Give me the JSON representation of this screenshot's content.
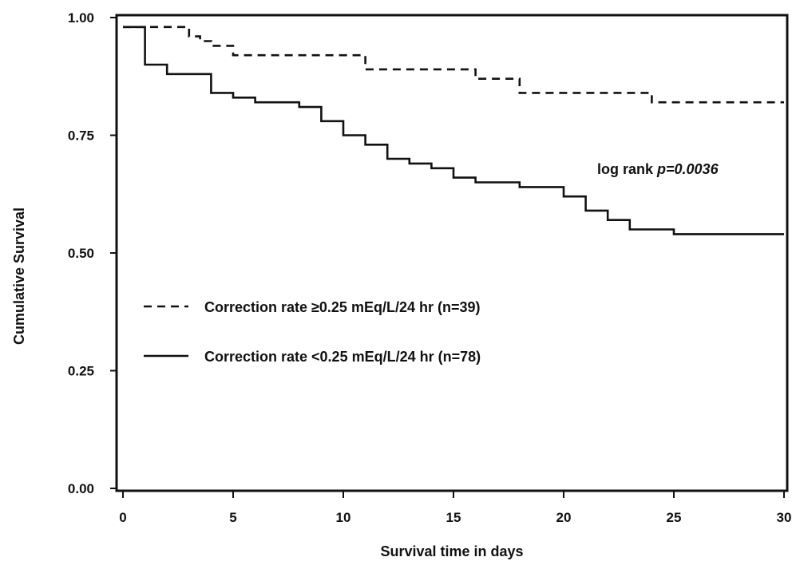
{
  "chart_data": {
    "type": "line",
    "xlabel": "Survival time in days",
    "ylabel": "Cumulative Survival",
    "xlim": [
      0,
      30
    ],
    "ylim": [
      0,
      1
    ],
    "x_ticks": [
      "0",
      "5",
      "10",
      "15",
      "20",
      "25",
      "30"
    ],
    "y_ticks": [
      "0.00",
      "0.25",
      "0.50",
      "0.75",
      "1.00"
    ],
    "grid": false,
    "legend_position": "left-middle",
    "annotation": {
      "prefix": "log rank ",
      "p_text": "p=0.0036"
    },
    "series": [
      {
        "name": "Correction rate ≥0.25 mEq/L/24 hr (n=39)",
        "style": "dashed",
        "color": "#111111",
        "step": true,
        "x": [
          0,
          3,
          3.5,
          4,
          5,
          11,
          16,
          18,
          24,
          30
        ],
        "y": [
          0.98,
          0.96,
          0.95,
          0.94,
          0.92,
          0.89,
          0.87,
          0.84,
          0.82,
          0.82
        ]
      },
      {
        "name": "Correction rate <0.25 mEq/L/24 hr (n=78)",
        "style": "solid",
        "color": "#111111",
        "step": true,
        "x": [
          0,
          1,
          2,
          4,
          5,
          6,
          8,
          9,
          10,
          11,
          12,
          13,
          14,
          15,
          16,
          18,
          20,
          21,
          22,
          23,
          25,
          30
        ],
        "y": [
          0.98,
          0.9,
          0.88,
          0.84,
          0.83,
          0.82,
          0.81,
          0.78,
          0.75,
          0.73,
          0.7,
          0.69,
          0.68,
          0.66,
          0.65,
          0.64,
          0.62,
          0.59,
          0.57,
          0.55,
          0.54,
          0.54
        ]
      }
    ]
  }
}
